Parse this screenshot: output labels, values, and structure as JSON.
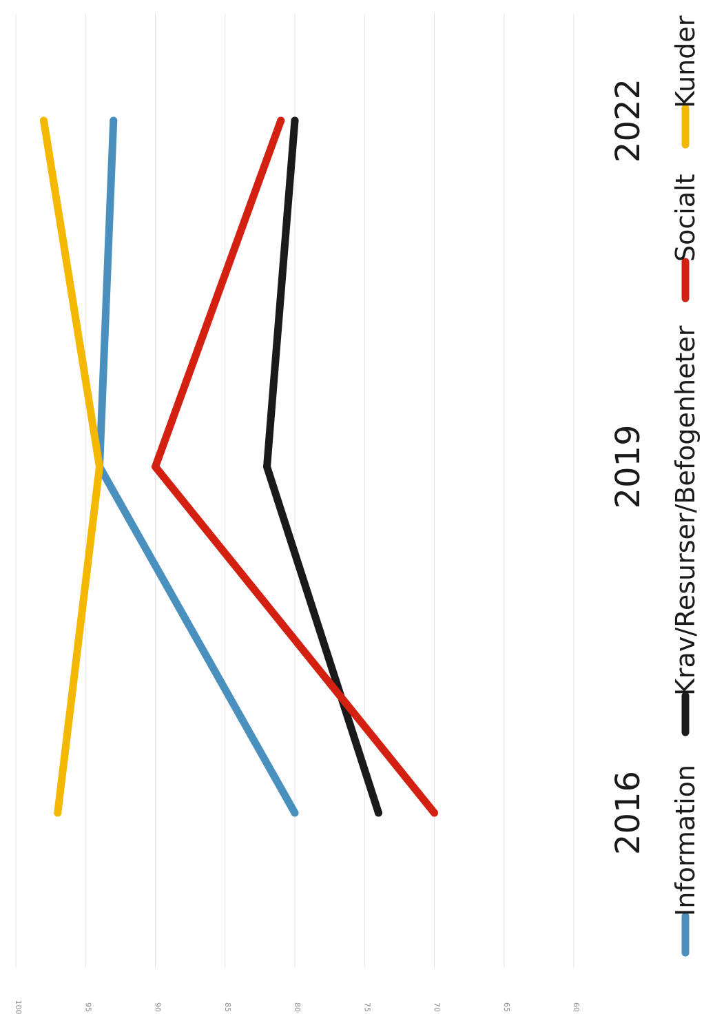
{
  "chart_data": {
    "type": "line",
    "categories": [
      "2016",
      "2019",
      "2022"
    ],
    "yticks": [
      "60",
      "65",
      "70",
      "75",
      "80",
      "85",
      "90",
      "95",
      "100"
    ],
    "ylim": [
      60,
      100
    ],
    "grid": true,
    "legend_position": "bottom",
    "series": [
      {
        "name": "Information",
        "color": "#4a90bf",
        "values": [
          80,
          94,
          93
        ]
      },
      {
        "name": "Krav/Resurser/Befogenheter",
        "color": "#1a1a1a",
        "values": [
          74,
          82,
          80
        ]
      },
      {
        "name": "Socialt",
        "color": "#d42010",
        "values": [
          70,
          90,
          81
        ]
      },
      {
        "name": "Kunder",
        "color": "#f5b800",
        "values": [
          97,
          94,
          98
        ]
      }
    ]
  }
}
